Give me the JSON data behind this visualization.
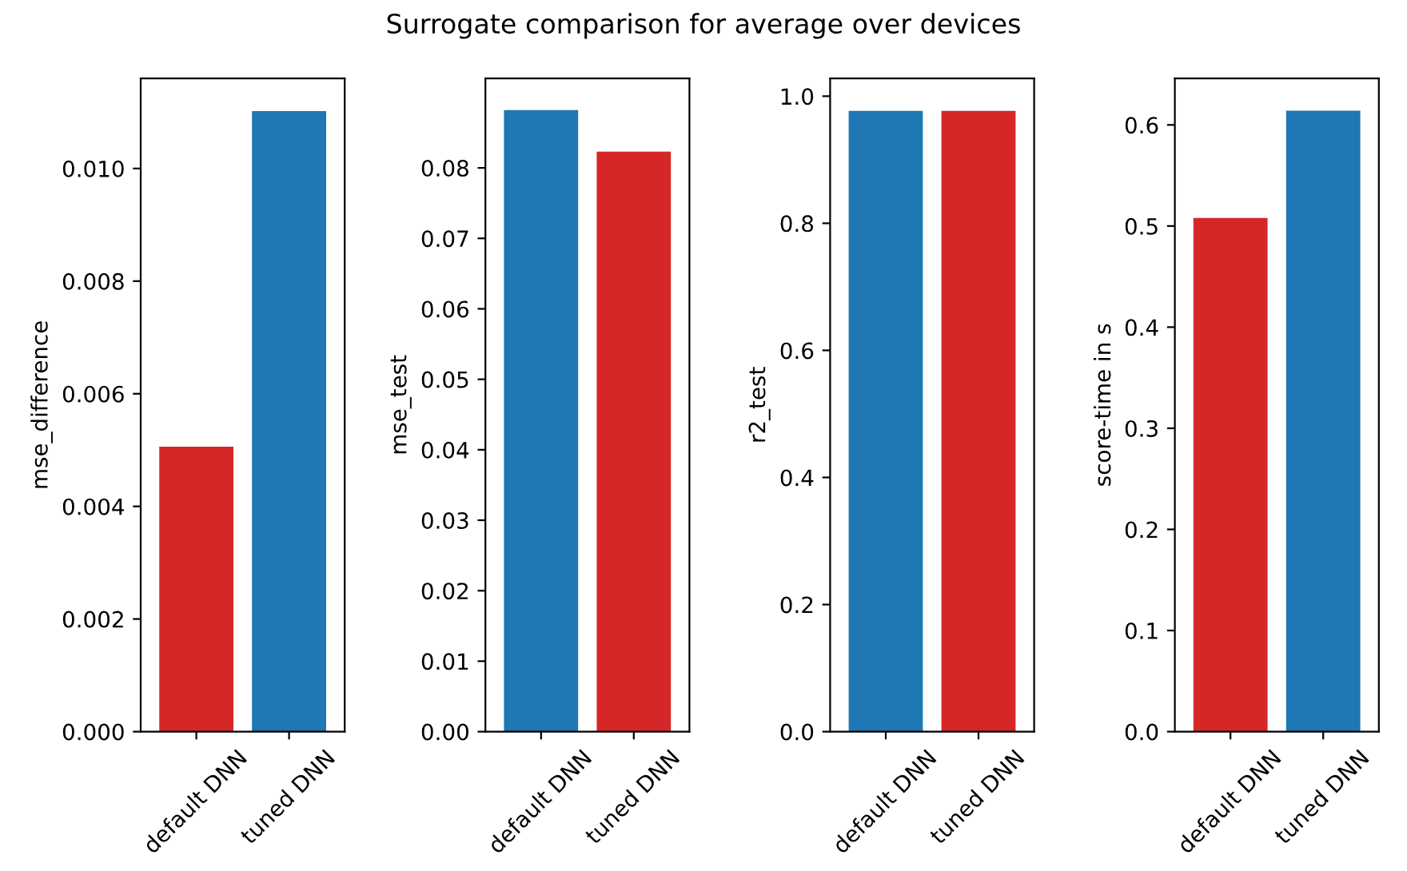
{
  "chart_data": [
    {
      "type": "bar",
      "ylabel": "mse_difference",
      "categories": [
        "default DNN",
        "tuned DNN"
      ],
      "values": [
        0.00506,
        0.01102
      ],
      "colors": [
        "#d62728",
        "#1f77b4"
      ],
      "ylim": [
        0,
        0.0116
      ],
      "yticks": [
        {
          "value": 0,
          "label": "0.000"
        },
        {
          "value": 0.002,
          "label": "0.002"
        },
        {
          "value": 0.004,
          "label": "0.004"
        },
        {
          "value": 0.006,
          "label": "0.006"
        },
        {
          "value": 0.008,
          "label": "0.008"
        },
        {
          "value": 0.01,
          "label": "0.010"
        }
      ],
      "grid": false,
      "legend": false
    },
    {
      "type": "bar",
      "title": "Surrogate comparison for average over devices",
      "ylabel": "mse_test",
      "categories": [
        "default DNN",
        "tuned DNN"
      ],
      "values": [
        0.0882,
        0.0823
      ],
      "colors": [
        "#1f77b4",
        "#d62728"
      ],
      "ylim": [
        0,
        0.0927
      ],
      "yticks": [
        {
          "value": 0,
          "label": "0.00"
        },
        {
          "value": 0.01,
          "label": "0.01"
        },
        {
          "value": 0.02,
          "label": "0.02"
        },
        {
          "value": 0.03,
          "label": "0.03"
        },
        {
          "value": 0.04,
          "label": "0.04"
        },
        {
          "value": 0.05,
          "label": "0.05"
        },
        {
          "value": 0.06,
          "label": "0.06"
        },
        {
          "value": 0.07,
          "label": "0.07"
        },
        {
          "value": 0.08,
          "label": "0.08"
        }
      ],
      "grid": false,
      "legend": false
    },
    {
      "type": "bar",
      "ylabel": "r2_test",
      "categories": [
        "default DNN",
        "tuned DNN"
      ],
      "values": [
        0.977,
        0.977
      ],
      "colors": [
        "#1f77b4",
        "#d62728"
      ],
      "ylim": [
        0,
        1.028
      ],
      "yticks": [
        {
          "value": 0,
          "label": "0.0"
        },
        {
          "value": 0.2,
          "label": "0.2"
        },
        {
          "value": 0.4,
          "label": "0.4"
        },
        {
          "value": 0.6,
          "label": "0.6"
        },
        {
          "value": 0.8,
          "label": "0.8"
        },
        {
          "value": 1,
          "label": "1.0"
        }
      ],
      "grid": false,
      "legend": false
    },
    {
      "type": "bar",
      "ylabel": "score-time in s",
      "categories": [
        "default DNN",
        "tuned DNN"
      ],
      "values": [
        0.508,
        0.614
      ],
      "colors": [
        "#d62728",
        "#1f77b4"
      ],
      "ylim": [
        0,
        0.646
      ],
      "yticks": [
        {
          "value": 0,
          "label": "0.0"
        },
        {
          "value": 0.1,
          "label": "0.1"
        },
        {
          "value": 0.2,
          "label": "0.2"
        },
        {
          "value": 0.3,
          "label": "0.3"
        },
        {
          "value": 0.4,
          "label": "0.4"
        },
        {
          "value": 0.5,
          "label": "0.5"
        },
        {
          "value": 0.6,
          "label": "0.6"
        }
      ],
      "grid": false,
      "legend": false
    }
  ]
}
